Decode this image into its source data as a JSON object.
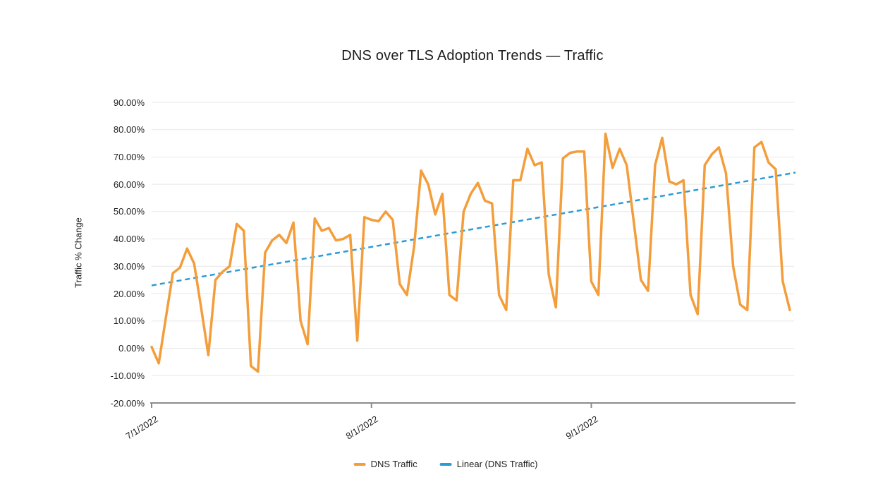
{
  "colors": {
    "series": "#f49d3b",
    "trend": "#2b9cd8",
    "grid": "#e7e7e7",
    "axis": "#8c8c8c",
    "text": "#1f1f1f"
  },
  "legend": [
    {
      "label": "DNS Traffic",
      "color": "#f49d3b",
      "style": "solid"
    },
    {
      "label": "Linear (DNS Traffic)",
      "color": "#2b9cd8",
      "style": "dashed"
    }
  ],
  "chart_data": {
    "type": "line",
    "title": "DNS over TLS Adoption Trends — Traffic",
    "xlabel": "",
    "ylabel": "Traffic % Change",
    "ylim": [
      -20,
      90
    ],
    "grid": true,
    "legend_position": "bottom",
    "y_tick_labels": [
      "90.00%",
      "80.00%",
      "70.00%",
      "60.00%",
      "50.00%",
      "40.00%",
      "30.00%",
      "20.00%",
      "10.00%",
      "0.00%",
      "-10.00%",
      "-20.00%"
    ],
    "x_ticks": [
      {
        "day": 0,
        "label": "7/1/2022"
      },
      {
        "day": 31,
        "label": "8/1/2022"
      },
      {
        "day": 62,
        "label": "9/1/2022"
      }
    ],
    "x_description": "daily data points, one per day starting 7/1/2022 (91 days)",
    "series": [
      {
        "name": "DNS Traffic",
        "type": "line",
        "color": "#f49d3b",
        "unit": "%",
        "values": [
          0.5,
          -5.5,
          11,
          27.5,
          29.5,
          36.5,
          31,
          14.5,
          -2.5,
          25,
          28,
          30,
          45.5,
          43,
          -6.5,
          -8.5,
          35,
          39.5,
          41.5,
          38.5,
          46,
          10,
          1.5,
          47.5,
          43,
          44,
          39.5,
          40,
          41.5,
          2.8,
          48,
          47,
          46.5,
          50,
          47,
          23.5,
          19.5,
          37,
          65,
          60,
          49,
          56.5,
          19.5,
          17.5,
          50,
          56.5,
          60.5,
          54,
          53,
          19.5,
          14,
          61.5,
          61.5,
          73,
          67,
          68,
          27,
          15,
          69.5,
          71.5,
          72,
          72,
          24.5,
          19.5,
          78.5,
          66,
          73,
          67,
          46,
          25,
          21,
          67,
          77,
          61,
          60,
          61.5,
          19.5,
          12.5,
          67,
          71,
          73.5,
          64,
          30,
          16,
          14,
          73.5,
          75.5,
          68,
          65.5,
          24.5,
          14
        ]
      },
      {
        "name": "Linear (DNS Traffic)",
        "type": "trendline",
        "style": "dashed",
        "color": "#2b9cd8",
        "unit": "%",
        "start_value": 23,
        "end_value": 64.3
      }
    ]
  }
}
